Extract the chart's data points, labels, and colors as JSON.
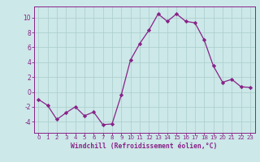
{
  "x": [
    0,
    1,
    2,
    3,
    4,
    5,
    6,
    7,
    8,
    9,
    10,
    11,
    12,
    13,
    14,
    15,
    16,
    17,
    18,
    19,
    20,
    21,
    22,
    23
  ],
  "y": [
    -1,
    -1.8,
    -3.7,
    -2.8,
    -2.0,
    -3.2,
    -2.7,
    -4.4,
    -4.3,
    -0.4,
    4.3,
    6.5,
    8.3,
    10.5,
    9.5,
    10.5,
    9.5,
    9.3,
    7.0,
    3.5,
    1.3,
    1.7,
    0.7,
    0.6
  ],
  "line_color": "#882288",
  "marker_color": "#882288",
  "bg_color": "#cce8e8",
  "grid_color": "#aacccc",
  "xlabel": "Windchill (Refroidissement éolien,°C)",
  "xlim": [
    -0.5,
    23.5
  ],
  "ylim": [
    -5.5,
    11.5
  ],
  "xticks": [
    0,
    1,
    2,
    3,
    4,
    5,
    6,
    7,
    8,
    9,
    10,
    11,
    12,
    13,
    14,
    15,
    16,
    17,
    18,
    19,
    20,
    21,
    22,
    23
  ],
  "yticks": [
    -4,
    -2,
    0,
    2,
    4,
    6,
    8,
    10
  ],
  "xlabel_color": "#882288",
  "tick_color": "#882288",
  "spine_color": "#882288"
}
